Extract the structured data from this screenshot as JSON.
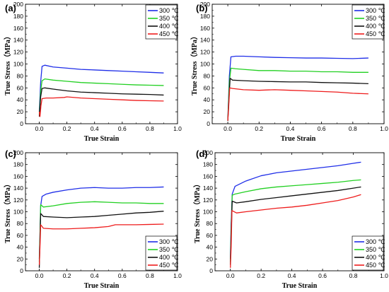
{
  "chart_data": [
    {
      "type": "line",
      "panel_label": "(a)",
      "xlabel": "True Strain",
      "ylabel": "True Stress（MPa）",
      "xlim": [
        -0.1,
        1.0
      ],
      "ylim": [
        0,
        200
      ],
      "x_ticks": [
        "0.0",
        "0.2",
        "0.4",
        "0.6",
        "0.8",
        "1.0"
      ],
      "y_ticks": [
        "0",
        "20",
        "40",
        "60",
        "80",
        "100",
        "120",
        "140",
        "160",
        "180",
        "200"
      ],
      "legend": "top-right",
      "grid": false,
      "series": [
        {
          "name": "300 ℃",
          "color": "#1f2ee8",
          "points": [
            [
              0,
              20
            ],
            [
              0.01,
              70
            ],
            [
              0.02,
              96
            ],
            [
              0.04,
              98
            ],
            [
              0.1,
              95
            ],
            [
              0.2,
              93
            ],
            [
              0.3,
              91
            ],
            [
              0.4,
              90
            ],
            [
              0.5,
              89
            ],
            [
              0.6,
              88
            ],
            [
              0.7,
              87
            ],
            [
              0.8,
              86
            ],
            [
              0.9,
              85
            ]
          ]
        },
        {
          "name": "350 ℃",
          "color": "#22d022",
          "points": [
            [
              0,
              15
            ],
            [
              0.01,
              55
            ],
            [
              0.02,
              72
            ],
            [
              0.04,
              75
            ],
            [
              0.1,
              73
            ],
            [
              0.2,
              71
            ],
            [
              0.3,
              69
            ],
            [
              0.4,
              68
            ],
            [
              0.5,
              67
            ],
            [
              0.6,
              66
            ],
            [
              0.7,
              65
            ],
            [
              0.8,
              64.5
            ],
            [
              0.9,
              64
            ]
          ]
        },
        {
          "name": "400 ℃",
          "color": "#111111",
          "points": [
            [
              0,
              12
            ],
            [
              0.01,
              45
            ],
            [
              0.02,
              59
            ],
            [
              0.04,
              60
            ],
            [
              0.1,
              58
            ],
            [
              0.2,
              55
            ],
            [
              0.3,
              53
            ],
            [
              0.4,
              52
            ],
            [
              0.5,
              51
            ],
            [
              0.6,
              50
            ],
            [
              0.7,
              49.5
            ],
            [
              0.8,
              49
            ],
            [
              0.9,
              48
            ]
          ]
        },
        {
          "name": "450 ℃",
          "color": "#ee1c1c",
          "points": [
            [
              0,
              20
            ],
            [
              0.005,
              12
            ],
            [
              0.012,
              30
            ],
            [
              0.02,
              42
            ],
            [
              0.05,
              43
            ],
            [
              0.1,
              43
            ],
            [
              0.18,
              44
            ],
            [
              0.2,
              45
            ],
            [
              0.3,
              43
            ],
            [
              0.4,
              42
            ],
            [
              0.5,
              41
            ],
            [
              0.6,
              40
            ],
            [
              0.7,
              39
            ],
            [
              0.8,
              38.5
            ],
            [
              0.9,
              38
            ]
          ]
        }
      ]
    },
    {
      "type": "line",
      "panel_label": "(b)",
      "xlabel": "True Strain",
      "ylabel": "True Stress（MPa）",
      "xlim": [
        -0.1,
        1.0
      ],
      "ylim": [
        0,
        200
      ],
      "x_ticks": [
        "0.0",
        "0.2",
        "0.4",
        "0.6",
        "0.8",
        "1.0"
      ],
      "y_ticks": [
        "0",
        "20",
        "40",
        "60",
        "80",
        "100",
        "120",
        "140",
        "160",
        "180",
        "200"
      ],
      "legend": "top-right",
      "grid": false,
      "series": [
        {
          "name": "300 ℃",
          "color": "#1f2ee8",
          "points": [
            [
              0,
              5
            ],
            [
              0.01,
              80
            ],
            [
              0.02,
              112
            ],
            [
              0.05,
              113
            ],
            [
              0.1,
              113
            ],
            [
              0.2,
              112
            ],
            [
              0.3,
              111
            ],
            [
              0.4,
              110.5
            ],
            [
              0.5,
              110
            ],
            [
              0.6,
              110
            ],
            [
              0.7,
              109.5
            ],
            [
              0.8,
              109
            ],
            [
              0.9,
              110
            ]
          ]
        },
        {
          "name": "350 ℃",
          "color": "#22d022",
          "points": [
            [
              0,
              5
            ],
            [
              0.01,
              70
            ],
            [
              0.02,
              93
            ],
            [
              0.05,
              92
            ],
            [
              0.1,
              91
            ],
            [
              0.2,
              89
            ],
            [
              0.3,
              89
            ],
            [
              0.4,
              88
            ],
            [
              0.5,
              88
            ],
            [
              0.6,
              87
            ],
            [
              0.7,
              87
            ],
            [
              0.8,
              86
            ],
            [
              0.9,
              86
            ]
          ]
        },
        {
          "name": "400 ℃",
          "color": "#111111",
          "points": [
            [
              0,
              5
            ],
            [
              0.01,
              55
            ],
            [
              0.015,
              76
            ],
            [
              0.03,
              73
            ],
            [
              0.1,
              72
            ],
            [
              0.2,
              71
            ],
            [
              0.3,
              70.5
            ],
            [
              0.4,
              70
            ],
            [
              0.5,
              70
            ],
            [
              0.6,
              69
            ],
            [
              0.7,
              68.5
            ],
            [
              0.8,
              68
            ],
            [
              0.9,
              67
            ]
          ]
        },
        {
          "name": "450 ℃",
          "color": "#ee1c1c",
          "points": [
            [
              0,
              5
            ],
            [
              0.005,
              25
            ],
            [
              0.012,
              60
            ],
            [
              0.03,
              59
            ],
            [
              0.1,
              57
            ],
            [
              0.2,
              56
            ],
            [
              0.3,
              57
            ],
            [
              0.4,
              56
            ],
            [
              0.5,
              55
            ],
            [
              0.6,
              54
            ],
            [
              0.7,
              53
            ],
            [
              0.8,
              51
            ],
            [
              0.9,
              50
            ]
          ]
        }
      ]
    },
    {
      "type": "line",
      "panel_label": "(c)",
      "xlabel": "True Strain",
      "ylabel": "True Stress（MPa）",
      "xlim": [
        -0.1,
        1.0
      ],
      "ylim": [
        0,
        200
      ],
      "x_ticks": [
        "0.0",
        "0.2",
        "0.4",
        "0.6",
        "0.8",
        "1.0"
      ],
      "y_ticks": [
        "0",
        "20",
        "40",
        "60",
        "80",
        "100",
        "120",
        "140",
        "160",
        "180",
        "200"
      ],
      "legend": "bottom-right",
      "grid": false,
      "series": [
        {
          "name": "300 ℃",
          "color": "#1f2ee8",
          "points": [
            [
              0,
              20
            ],
            [
              0.005,
              60
            ],
            [
              0.01,
              110
            ],
            [
              0.02,
              126
            ],
            [
              0.05,
              130
            ],
            [
              0.1,
              133
            ],
            [
              0.2,
              137
            ],
            [
              0.3,
              140
            ],
            [
              0.4,
              141
            ],
            [
              0.5,
              140
            ],
            [
              0.6,
              140
            ],
            [
              0.7,
              141
            ],
            [
              0.8,
              141
            ],
            [
              0.9,
              142
            ]
          ]
        },
        {
          "name": "350 ℃",
          "color": "#22d022",
          "points": [
            [
              0,
              15
            ],
            [
              0.005,
              60
            ],
            [
              0.01,
              112
            ],
            [
              0.03,
              108
            ],
            [
              0.1,
              110
            ],
            [
              0.2,
              114
            ],
            [
              0.3,
              116
            ],
            [
              0.4,
              117
            ],
            [
              0.5,
              116
            ],
            [
              0.6,
              115
            ],
            [
              0.7,
              115
            ],
            [
              0.8,
              114
            ],
            [
              0.9,
              114
            ]
          ]
        },
        {
          "name": "400 ℃",
          "color": "#111111",
          "points": [
            [
              0,
              5
            ],
            [
              0.005,
              50
            ],
            [
              0.01,
              97
            ],
            [
              0.03,
              92
            ],
            [
              0.1,
              91
            ],
            [
              0.2,
              90
            ],
            [
              0.3,
              91
            ],
            [
              0.4,
              92
            ],
            [
              0.5,
              94
            ],
            [
              0.6,
              96
            ],
            [
              0.7,
              98
            ],
            [
              0.8,
              99
            ],
            [
              0.9,
              101
            ]
          ]
        },
        {
          "name": "450 ℃",
          "color": "#ee1c1c",
          "points": [
            [
              0,
              10
            ],
            [
              0.005,
              40
            ],
            [
              0.01,
              78
            ],
            [
              0.03,
              72
            ],
            [
              0.1,
              71
            ],
            [
              0.2,
              71
            ],
            [
              0.3,
              72
            ],
            [
              0.4,
              73
            ],
            [
              0.5,
              75
            ],
            [
              0.55,
              78
            ],
            [
              0.6,
              78
            ],
            [
              0.7,
              78
            ],
            [
              0.8,
              78.5
            ],
            [
              0.9,
              79
            ]
          ]
        }
      ]
    },
    {
      "type": "line",
      "panel_label": "(d)",
      "xlabel": "True Strain",
      "ylabel": "True Stress（MPa）",
      "xlim": [
        -0.1,
        1.0
      ],
      "ylim": [
        0,
        200
      ],
      "x_ticks": [
        "0.0",
        "0.2",
        "0.4",
        "0.6",
        "0.8",
        "1.0"
      ],
      "y_ticks": [
        "0",
        "20",
        "40",
        "60",
        "80",
        "100",
        "120",
        "140",
        "160",
        "180",
        "200"
      ],
      "legend": "bottom-right",
      "grid": false,
      "series": [
        {
          "name": "300 ℃",
          "color": "#1f2ee8",
          "points": [
            [
              0,
              20
            ],
            [
              0.005,
              80
            ],
            [
              0.012,
              130
            ],
            [
              0.03,
              143
            ],
            [
              0.1,
              152
            ],
            [
              0.2,
              161
            ],
            [
              0.3,
              166
            ],
            [
              0.4,
              169
            ],
            [
              0.5,
              172
            ],
            [
              0.6,
              175
            ],
            [
              0.7,
              178
            ],
            [
              0.8,
              182
            ],
            [
              0.85,
              184
            ]
          ]
        },
        {
          "name": "350 ℃",
          "color": "#22d022",
          "points": [
            [
              0,
              15
            ],
            [
              0.005,
              70
            ],
            [
              0.012,
              128
            ],
            [
              0.03,
              130
            ],
            [
              0.1,
              134
            ],
            [
              0.2,
              139
            ],
            [
              0.3,
              142
            ],
            [
              0.4,
              144
            ],
            [
              0.5,
              146
            ],
            [
              0.6,
              148
            ],
            [
              0.7,
              150
            ],
            [
              0.8,
              153
            ],
            [
              0.85,
              154
            ]
          ]
        },
        {
          "name": "400 ℃",
          "color": "#111111",
          "points": [
            [
              0,
              10
            ],
            [
              0.005,
              60
            ],
            [
              0.012,
              118
            ],
            [
              0.04,
              115
            ],
            [
              0.1,
              117
            ],
            [
              0.2,
              121
            ],
            [
              0.3,
              124
            ],
            [
              0.4,
              127
            ],
            [
              0.5,
              130
            ],
            [
              0.6,
              133
            ],
            [
              0.7,
              136
            ],
            [
              0.8,
              140
            ],
            [
              0.85,
              142
            ]
          ]
        },
        {
          "name": "450 ℃",
          "color": "#ee1c1c",
          "points": [
            [
              0,
              5
            ],
            [
              0.005,
              40
            ],
            [
              0.01,
              102
            ],
            [
              0.04,
              98
            ],
            [
              0.1,
              100
            ],
            [
              0.2,
              103
            ],
            [
              0.3,
              106
            ],
            [
              0.4,
              108
            ],
            [
              0.5,
              111
            ],
            [
              0.6,
              115
            ],
            [
              0.7,
              119
            ],
            [
              0.8,
              125
            ],
            [
              0.85,
              129
            ]
          ]
        }
      ]
    }
  ]
}
